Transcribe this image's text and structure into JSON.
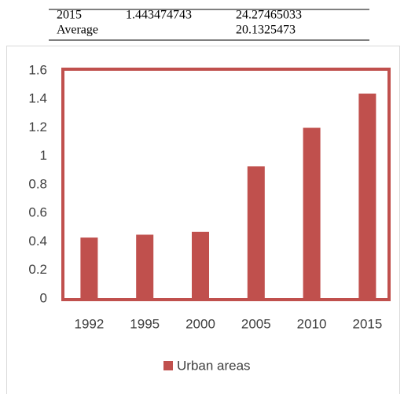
{
  "table": {
    "rows": [
      [
        "2015",
        "1.443474743",
        "24.27465033"
      ],
      [
        "Average",
        "20.1325473"
      ]
    ]
  },
  "chart_data": {
    "type": "bar",
    "categories": [
      "1992",
      "1995",
      "2000",
      "2005",
      "2010",
      "2015"
    ],
    "series": [
      {
        "name": "Urban areas",
        "color": "#c0504d",
        "values": [
          0.43,
          0.45,
          0.47,
          0.93,
          1.2,
          1.44
        ]
      }
    ],
    "ylim": [
      0,
      1.6
    ],
    "yticks": [
      0,
      0.2,
      0.4,
      0.6,
      0.8,
      1,
      1.2,
      1.4,
      1.6
    ],
    "grid": false,
    "legend": "bottom",
    "plot_border_color": "#c0504d"
  }
}
